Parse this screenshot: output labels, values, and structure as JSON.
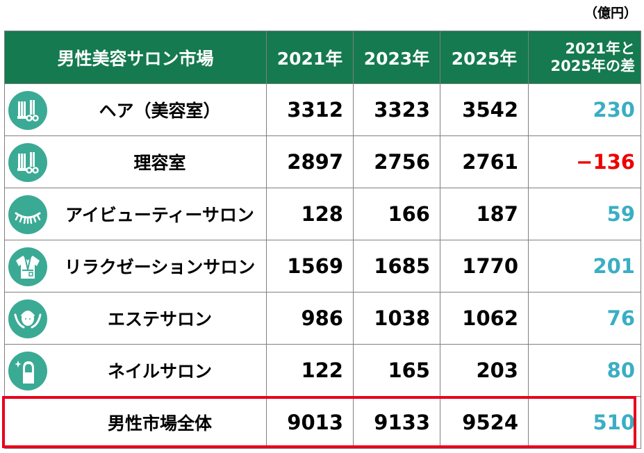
{
  "unit_label": "（億円）",
  "colors": {
    "header_bg": "#157a4f",
    "icon_bg": "#3aaa94",
    "positive": "#3aaec4",
    "negative": "#ee0000",
    "highlight_border": "#e8001c"
  },
  "header": {
    "category": "男性美容サロン市場",
    "y2021": "2021年",
    "y2023": "2023年",
    "y2025": "2025年",
    "diff_line1": "2021年と",
    "diff_line2": "2025年の差"
  },
  "rows": [
    {
      "icon": "comb-scissors-icon",
      "name": "ヘア（美容室）",
      "y2021": "3312",
      "y2023": "3323",
      "y2025": "3542",
      "diff": "230"
    },
    {
      "icon": "comb-scissors-icon",
      "name": "理容室",
      "y2021": "2897",
      "y2023": "2756",
      "y2025": "2761",
      "diff": "−136"
    },
    {
      "icon": "eyelash-icon",
      "name": "アイビューティーサロン",
      "y2021": "128",
      "y2023": "166",
      "y2025": "187",
      "diff": "59"
    },
    {
      "icon": "bathrobe-icon",
      "name": "リラクゼーションサロン",
      "y2021": "1569",
      "y2023": "1685",
      "y2025": "1770",
      "diff": "201"
    },
    {
      "icon": "face-care-icon",
      "name": "エステサロン",
      "y2021": "986",
      "y2023": "1038",
      "y2025": "1062",
      "diff": "76"
    },
    {
      "icon": "nail-sparkle-icon",
      "name": "ネイルサロン",
      "y2021": "122",
      "y2023": "165",
      "y2025": "203",
      "diff": "80"
    }
  ],
  "total": {
    "name": "男性市場全体",
    "y2021": "9013",
    "y2023": "9133",
    "y2025": "9524",
    "diff": "510"
  }
}
